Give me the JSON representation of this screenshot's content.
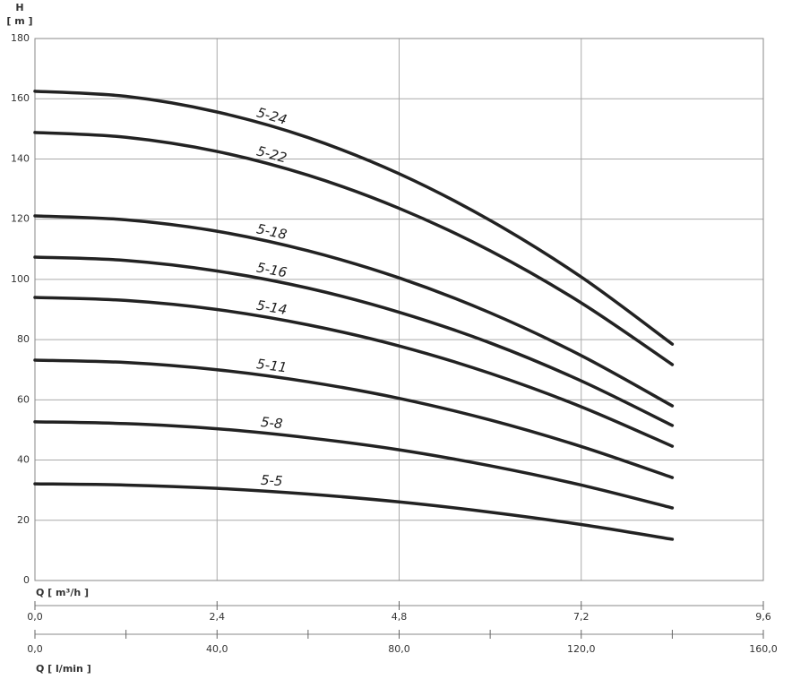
{
  "chart_data": {
    "type": "line",
    "y_label": "H",
    "y_unit": "[ m ]",
    "x_label": "Q [ m³/h ]",
    "x2_label": "Q [ l/min ]",
    "x": [
      0,
      1.2,
      2.4,
      3.6,
      4.8,
      6.0,
      7.2,
      8.4
    ],
    "series": [
      {
        "name": "5-24",
        "color": "#222222",
        "values": [
          162.5,
          160.8,
          155.6,
          147.1,
          135.1,
          119.6,
          100.8,
          78.5
        ]
      },
      {
        "name": "5-22",
        "color": "#222222",
        "values": [
          148.8,
          147.2,
          142.5,
          134.6,
          123.6,
          109.5,
          92.2,
          71.7
        ]
      },
      {
        "name": "5-18",
        "color": "#222222",
        "values": [
          121.1,
          119.8,
          116.0,
          109.5,
          100.5,
          88.9,
          74.7,
          58.0
        ]
      },
      {
        "name": "5-16",
        "color": "#222222",
        "values": [
          107.4,
          106.3,
          102.8,
          97.1,
          89.1,
          78.9,
          66.3,
          51.5
        ]
      },
      {
        "name": "5-14",
        "color": "#222222",
        "values": [
          94.0,
          93.0,
          90.0,
          84.9,
          77.9,
          68.8,
          57.7,
          44.6
        ]
      },
      {
        "name": "5-11",
        "color": "#222222",
        "values": [
          73.2,
          72.4,
          70.0,
          66.0,
          60.5,
          53.3,
          44.5,
          34.2
        ]
      },
      {
        "name": "5-8",
        "color": "#222222",
        "values": [
          52.7,
          52.1,
          50.4,
          47.4,
          43.4,
          38.1,
          31.7,
          24.1
        ]
      },
      {
        "name": "5-5",
        "color": "#222222",
        "values": [
          32.1,
          31.7,
          30.6,
          28.7,
          26.1,
          22.7,
          18.6,
          13.7
        ]
      }
    ],
    "xlim": [
      0,
      9.6
    ],
    "xticks": [
      {
        "value": 0,
        "label": "0,0"
      },
      {
        "value": 2.4,
        "label": "2,4"
      },
      {
        "value": 4.8,
        "label": "4,8"
      },
      {
        "value": 7.2,
        "label": "7,2"
      },
      {
        "value": 9.6,
        "label": "9,6"
      }
    ],
    "x2lim": [
      0,
      160
    ],
    "x2ticks": [
      {
        "value": 0,
        "label": "0,0"
      },
      {
        "value": 40,
        "label": "40,0"
      },
      {
        "value": 80,
        "label": "80,0"
      },
      {
        "value": 120,
        "label": "120,0"
      },
      {
        "value": 160,
        "label": "160,0"
      }
    ],
    "x2minorticks": [
      20,
      60,
      100,
      140
    ],
    "ylim": [
      0,
      180
    ],
    "yticks": [
      0,
      20,
      40,
      60,
      80,
      100,
      120,
      140,
      160,
      180
    ],
    "grid": true
  }
}
